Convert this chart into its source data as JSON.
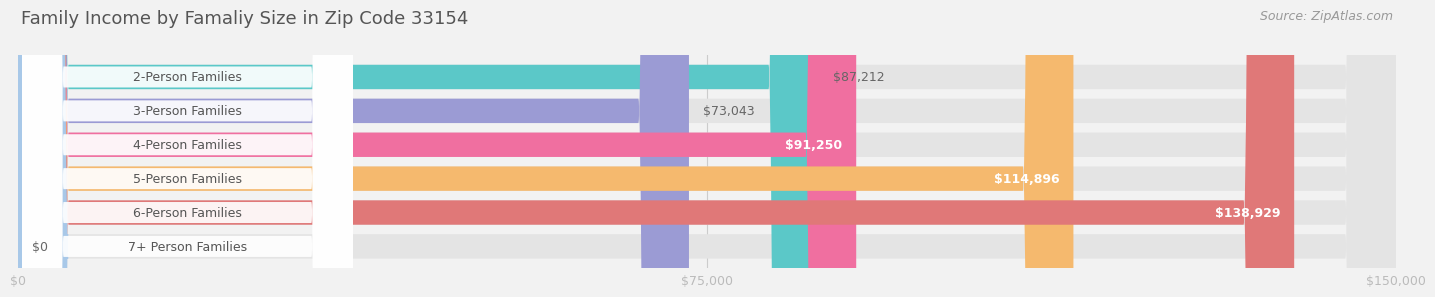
{
  "title": "Family Income by Famaliy Size in Zip Code 33154",
  "source": "Source: ZipAtlas.com",
  "categories": [
    "2-Person Families",
    "3-Person Families",
    "4-Person Families",
    "5-Person Families",
    "6-Person Families",
    "7+ Person Families"
  ],
  "values": [
    87212,
    73043,
    91250,
    114896,
    138929,
    0
  ],
  "bar_colors": [
    "#5bc8c8",
    "#9b9bd4",
    "#f06fa0",
    "#f5b96e",
    "#e07878",
    "#a8c8e8"
  ],
  "value_labels": [
    "$87,212",
    "$73,043",
    "$91,250",
    "$114,896",
    "$138,929",
    "$0"
  ],
  "value_inside": [
    false,
    false,
    true,
    true,
    true,
    false
  ],
  "xlim": [
    0,
    150000
  ],
  "xticks": [
    0,
    75000,
    150000
  ],
  "xtick_labels": [
    "$0",
    "$75,000",
    "$150,000"
  ],
  "background_color": "#f2f2f2",
  "bar_bg_color": "#e4e4e4",
  "title_fontsize": 13,
  "source_fontsize": 9,
  "label_fontsize": 9,
  "value_fontsize": 9
}
